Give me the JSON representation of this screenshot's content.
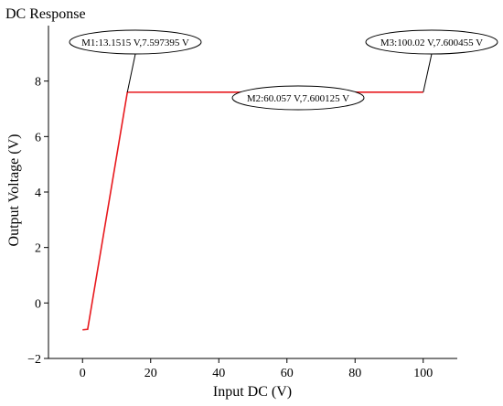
{
  "chart_data": {
    "type": "line",
    "title": "DC Response",
    "xlabel": "Input DC (V)",
    "ylabel": "Output Voltage (V)",
    "xlim": [
      -10,
      110
    ],
    "ylim": [
      -2,
      10
    ],
    "xticks": [
      0,
      20,
      40,
      60,
      80,
      100
    ],
    "yticks": [
      -2,
      0,
      2,
      4,
      6,
      8
    ],
    "grid": false,
    "line_color": "#e8191e",
    "series": [
      {
        "x": [
          0,
          1.5,
          13.1515,
          60.057,
          100.02
        ],
        "y": [
          -0.97,
          -0.95,
          7.597395,
          7.600125,
          7.600455
        ]
      }
    ],
    "markers": [
      {
        "label": "M1:13.1515 V,7.597395 V",
        "x": 13.1515,
        "y": 7.597395
      },
      {
        "label": "M2:60.057 V,7.600125 V",
        "x": 60.057,
        "y": 7.600125
      },
      {
        "label": "M3:100.02 V,7.600455 V",
        "x": 100.02,
        "y": 7.600455
      }
    ]
  }
}
